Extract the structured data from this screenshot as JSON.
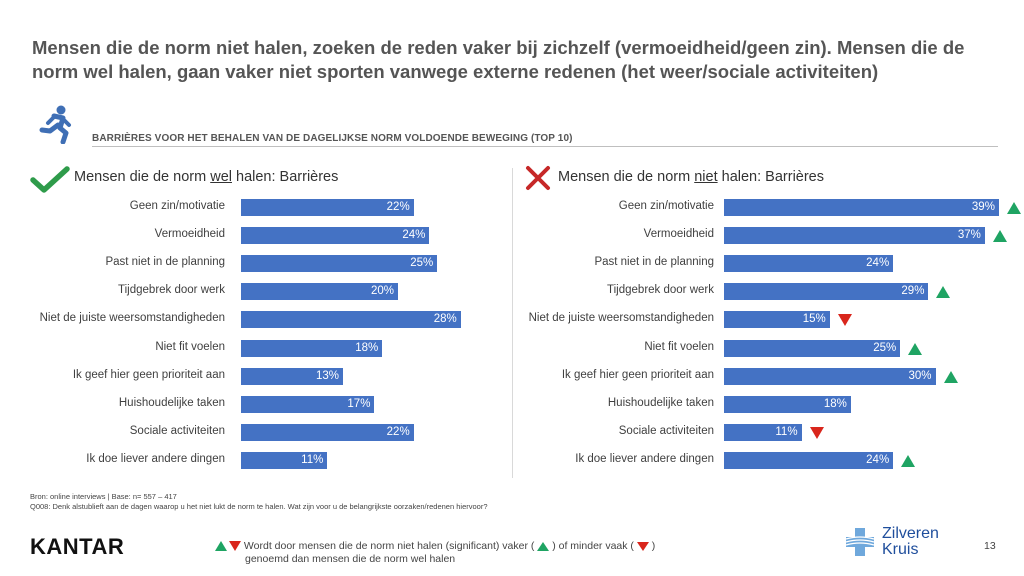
{
  "headline": "Mensen die de norm niet halen, zoeken de reden vaker bij zichzelf (vermoeidheid/geen zin). Mensen die de norm wel halen, gaan vaker niet sporten vanwege externe redenen (het weer/sociale activiteiten)",
  "subtitle": "BARRIÈRES VOOR HET BEHALEN VAN DE DAGELIJKSE NORM VOLDOENDE BEWEGING (TOP 10)",
  "left_title": {
    "pre": "Mensen die de norm ",
    "em": "wel",
    "post": " halen: Barrières"
  },
  "right_title": {
    "pre": "Mensen die de norm ",
    "em": "niet",
    "post": " halen: Barrières"
  },
  "colors": {
    "bar": "#4472c4",
    "up": "#1fa463",
    "down": "#d9261c",
    "check": "#2e9b4a",
    "cross": "#c62828"
  },
  "chart_data": [
    {
      "type": "bar",
      "orientation": "horizontal",
      "title": "Mensen die de norm wel halen: Barrières",
      "categories": [
        "Geen zin/motivatie",
        "Vermoeidheid",
        "Past niet in de planning",
        "Tijdgebrek door werk",
        "Niet de juiste weersomstandigheden",
        "Niet fit voelen",
        "Ik geef hier geen prioriteit aan",
        "Huishoudelijke taken",
        "Sociale activiteiten",
        "Ik doe liever andere dingen"
      ],
      "values": [
        22,
        24,
        25,
        20,
        28,
        18,
        13,
        17,
        22,
        11
      ],
      "labels": [
        "22%",
        "24%",
        "25%",
        "20%",
        "28%",
        "18%",
        "13%",
        "17%",
        "22%",
        "11%"
      ],
      "unit": "%"
    },
    {
      "type": "bar",
      "orientation": "horizontal",
      "title": "Mensen die de norm niet halen: Barrières",
      "categories": [
        "Geen zin/motivatie",
        "Vermoeidheid",
        "Past niet in de planning",
        "Tijdgebrek door werk",
        "Niet de juiste weersomstandigheden",
        "Niet fit voelen",
        "Ik geef hier geen prioriteit aan",
        "Huishoudelijke taken",
        "Sociale activiteiten",
        "Ik doe liever andere dingen"
      ],
      "values": [
        39,
        37,
        24,
        29,
        15,
        25,
        30,
        18,
        11,
        24
      ],
      "labels": [
        "39%",
        "37%",
        "24%",
        "29%",
        "15%",
        "25%",
        "30%",
        "18%",
        "11%",
        "24%"
      ],
      "significance": [
        "up",
        "up",
        "",
        "up",
        "down",
        "up",
        "up",
        "",
        "down",
        "up"
      ],
      "unit": "%"
    }
  ],
  "source": "Bron: online interviews | Base: n= 557 – 417",
  "question": "Q008: Denk alstublieft aan de dagen waarop u het niet lukt de norm te halen. Wat zijn voor u de belangrijkste oorzaken/redenen hiervoor?",
  "brand": "KANTAR",
  "legend": {
    "part1": "Wordt door mensen die de norm niet halen (significant) vaker (",
    "part2": ") of minder vaak (",
    "part3": ")",
    "part4": "genoemd dan mensen die de norm wel halen"
  },
  "zk": {
    "line1": "Zilveren",
    "line2": "Kruis"
  },
  "page_number": "13"
}
